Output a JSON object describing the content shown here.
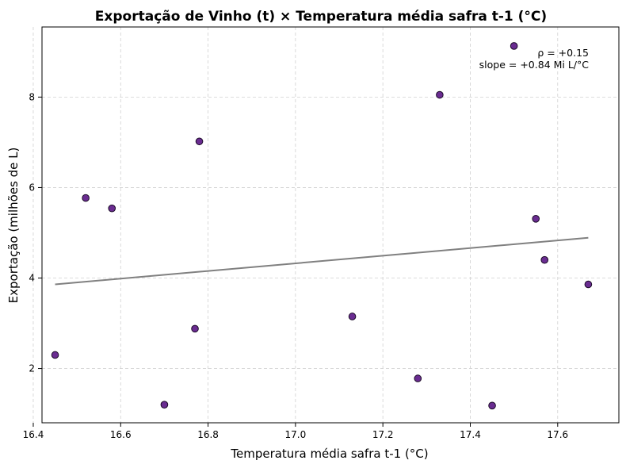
{
  "chart_data": {
    "type": "scatter",
    "title": "Exportação de Vinho (t) × Temperatura média safra t-1 (°C)",
    "xlabel": "Temperatura média safra t-1 (°C)",
    "ylabel": "Exportação (milhões de L)",
    "xlim": [
      16.42,
      17.74
    ],
    "ylim": [
      0.8,
      9.55
    ],
    "xticks": [
      16.4,
      16.6,
      16.8,
      17.0,
      17.2,
      17.4,
      17.6
    ],
    "xtick_labels": [
      "16.4",
      "16.6",
      "16.8",
      "17.0",
      "17.2",
      "17.4",
      "17.6"
    ],
    "yticks": [
      2,
      4,
      6,
      8
    ],
    "ytick_labels": [
      "2",
      "4",
      "6",
      "8"
    ],
    "grid": true,
    "point_color": "#6a2c91",
    "point_edge_color": "#1a0a26",
    "fit_line_color": "#808080",
    "points": [
      {
        "x": 16.45,
        "y": 2.3
      },
      {
        "x": 16.52,
        "y": 5.77
      },
      {
        "x": 16.58,
        "y": 5.54
      },
      {
        "x": 16.7,
        "y": 1.2
      },
      {
        "x": 16.77,
        "y": 2.88
      },
      {
        "x": 16.78,
        "y": 7.02
      },
      {
        "x": 17.13,
        "y": 3.15
      },
      {
        "x": 17.28,
        "y": 1.78
      },
      {
        "x": 17.33,
        "y": 8.05
      },
      {
        "x": 17.45,
        "y": 1.18
      },
      {
        "x": 17.5,
        "y": 9.13
      },
      {
        "x": 17.55,
        "y": 5.31
      },
      {
        "x": 17.57,
        "y": 4.4
      },
      {
        "x": 17.67,
        "y": 3.86
      }
    ],
    "fit_line": {
      "x": [
        16.45,
        17.67
      ],
      "y": [
        3.86,
        4.89
      ]
    },
    "annotations": [
      "ρ = +0.15",
      "slope = +0.84 Mi L/°C"
    ]
  }
}
